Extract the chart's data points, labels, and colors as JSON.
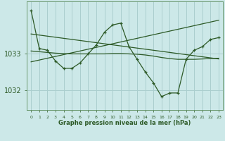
{
  "bg_color": "#cce8e8",
  "grid_color": "#aacece",
  "line_color": "#2d5a27",
  "xlabel": "Graphe pression niveau de la mer (hPa)",
  "hours": [
    0,
    1,
    2,
    3,
    4,
    5,
    6,
    7,
    8,
    9,
    10,
    11,
    12,
    13,
    14,
    15,
    16,
    17,
    18,
    19,
    20,
    21,
    22,
    23
  ],
  "line_main": [
    1034.2,
    1033.15,
    1033.1,
    1032.8,
    1032.6,
    1032.6,
    1032.75,
    1033.0,
    1033.25,
    1033.6,
    1033.8,
    1033.85,
    1033.2,
    1032.85,
    1032.5,
    1032.2,
    1031.82,
    1031.92,
    1031.92,
    1032.85,
    1033.1,
    1033.2,
    1033.4,
    1033.45
  ],
  "line_diag_up": [
    1032.78,
    1032.83,
    1032.88,
    1032.93,
    1032.98,
    1033.03,
    1033.08,
    1033.13,
    1033.18,
    1033.23,
    1033.28,
    1033.33,
    1033.38,
    1033.43,
    1033.48,
    1033.53,
    1033.58,
    1033.63,
    1033.68,
    1033.73,
    1033.78,
    1033.83,
    1033.88,
    1033.93
  ],
  "line_diag_down": [
    1033.55,
    1033.52,
    1033.49,
    1033.46,
    1033.43,
    1033.4,
    1033.37,
    1033.34,
    1033.31,
    1033.28,
    1033.25,
    1033.22,
    1033.19,
    1033.16,
    1033.13,
    1033.1,
    1033.07,
    1033.04,
    1033.01,
    1032.98,
    1032.95,
    1032.92,
    1032.89,
    1032.86
  ],
  "line_flat": [
    1033.08,
    1033.06,
    1033.04,
    1033.02,
    1033.01,
    1033.0,
    1033.0,
    1033.0,
    1033.0,
    1033.0,
    1033.01,
    1033.01,
    1033.0,
    1032.99,
    1032.97,
    1032.94,
    1032.9,
    1032.87,
    1032.85,
    1032.85,
    1032.85,
    1032.86,
    1032.87,
    1032.88
  ],
  "ylim": [
    1031.45,
    1034.45
  ],
  "yticks": [
    1032.0,
    1033.0
  ],
  "figsize": [
    3.2,
    2.0
  ],
  "dpi": 100
}
